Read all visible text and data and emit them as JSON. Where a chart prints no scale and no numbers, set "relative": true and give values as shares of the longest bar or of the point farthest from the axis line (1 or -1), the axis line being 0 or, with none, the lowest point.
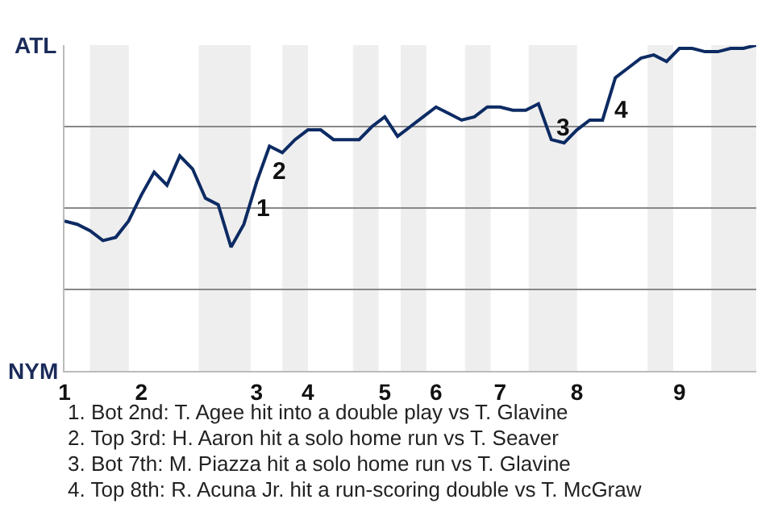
{
  "chart_data": {
    "type": "line",
    "relative": true,
    "categories": [
      "1",
      null,
      null,
      null,
      null,
      null,
      "2",
      null,
      null,
      null,
      null,
      null,
      null,
      null,
      null,
      "3",
      null,
      null,
      null,
      "4",
      null,
      null,
      null,
      null,
      null,
      "5",
      null,
      null,
      null,
      "6",
      null,
      null,
      null,
      null,
      "7",
      null,
      null,
      null,
      null,
      null,
      "8",
      null,
      null,
      null,
      null,
      null,
      null,
      null,
      "9",
      null,
      null,
      null,
      null,
      null,
      null
    ],
    "series": [
      {
        "color": "#0d2b63",
        "values": [
          0.46,
          0.45,
          0.43,
          0.4,
          0.41,
          0.46,
          0.54,
          0.61,
          0.57,
          0.66,
          0.62,
          0.53,
          0.51,
          0.38,
          0.45,
          0.58,
          0.69,
          0.67,
          0.71,
          0.74,
          0.74,
          0.71,
          0.71,
          0.71,
          0.75,
          0.78,
          0.72,
          0.75,
          0.78,
          0.81,
          0.79,
          0.77,
          0.78,
          0.81,
          0.81,
          0.8,
          0.8,
          0.82,
          0.71,
          0.7,
          0.74,
          0.77,
          0.77,
          0.9,
          0.93,
          0.96,
          0.97,
          0.95,
          0.99,
          0.99,
          0.98,
          0.98,
          0.99,
          0.99,
          1
        ]
      }
    ],
    "grid": "y",
    "marker": "none",
    "line_style": "solid",
    "annotations": [
      "ATL",
      "NYM",
      "1",
      "2",
      "3",
      "4",
      "1. Bot 2nd: T. Agee hit into a double play vs T. Glavine",
      "2. Top 3rd: H. Aaron hit a solo home run vs T. Seaver",
      "3. Bot 7th: M. Piazza hit a solo home run vs T. Glavine",
      "4. Top 8th: R. Acuna Jr. hit a run-scoring double vs T. McGraw"
    ]
  }
}
